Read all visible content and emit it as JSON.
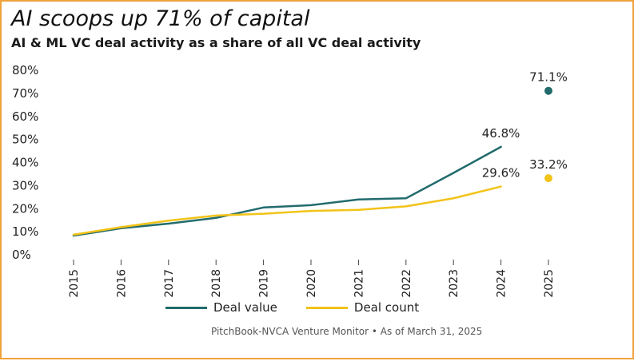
{
  "header": {
    "title": "AI scoops up 71% of capital",
    "subtitle": "AI & ML VC deal activity as a share of all VC deal activity"
  },
  "footer": {
    "source": "PitchBook-NVCA Venture Monitor  •  As of March 31, 2025"
  },
  "legend": {
    "items": [
      {
        "label": "Deal value",
        "color": "#226b6d"
      },
      {
        "label": "Deal count",
        "color": "#f2c318"
      }
    ],
    "placement": "bottom"
  },
  "chart_data": {
    "type": "line",
    "title": "AI scoops up 71% of capital",
    "subtitle": "AI & ML VC deal activity as a share of all VC deal activity",
    "xlabel": "",
    "ylabel": "",
    "categories": [
      "2015",
      "2016",
      "2017",
      "2018",
      "2019",
      "2020",
      "2021",
      "2022",
      "2023",
      "2024",
      "2025"
    ],
    "ylim": [
      0,
      80
    ],
    "yticks": [
      "0%",
      "10%",
      "20%",
      "30%",
      "40%",
      "50%",
      "60%",
      "70%",
      "80%"
    ],
    "grid": false,
    "series": [
      {
        "name": "Deal value",
        "color": "#226b6d",
        "values": [
          8.3,
          11.5,
          13.5,
          16.0,
          20.5,
          21.5,
          24.0,
          24.5,
          35.5,
          46.8,
          null
        ],
        "point_2025": 71.1,
        "labels": {
          "2024": "46.8%",
          "2025": "71.1%"
        }
      },
      {
        "name": "Deal count",
        "color": "#f2c318",
        "values": [
          8.7,
          12.0,
          14.8,
          17.0,
          17.8,
          19.0,
          19.5,
          21.0,
          24.5,
          29.6,
          null
        ],
        "point_2025": 33.2,
        "labels": {
          "2024": "29.6%",
          "2025": "33.2%"
        }
      }
    ]
  }
}
